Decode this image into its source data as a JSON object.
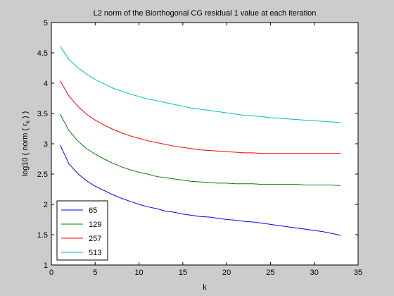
{
  "chart_data": {
    "type": "line",
    "title": "L2 norm of the Biorthogonal CG residual 1 value at each iteration",
    "xlabel": "k",
    "ylabel_prefix": "log10 ( norm ( r",
    "ylabel_subscript": "k",
    "ylabel_suffix": " ) )",
    "xlim": [
      0,
      35
    ],
    "ylim": [
      1,
      5
    ],
    "x_ticks": [
      0,
      5,
      10,
      15,
      20,
      25,
      30,
      35
    ],
    "y_ticks": [
      1,
      1.5,
      2,
      2.5,
      3,
      3.5,
      4,
      4.5,
      5
    ],
    "x_tick_labels": [
      "0",
      "5",
      "10",
      "15",
      "20",
      "25",
      "30",
      "35"
    ],
    "y_tick_labels": [
      "1",
      "1.5",
      "2",
      "2.5",
      "3",
      "3.5",
      "4",
      "4.5",
      "5"
    ],
    "grid": false,
    "legend_position": "bottom-left",
    "x": [
      1,
      2,
      3,
      4,
      5,
      6,
      7,
      8,
      9,
      10,
      11,
      12,
      13,
      14,
      15,
      16,
      17,
      18,
      19,
      20,
      21,
      22,
      23,
      24,
      25,
      26,
      27,
      28,
      29,
      30,
      31,
      32,
      33
    ],
    "series": [
      {
        "name": "65",
        "color": "#0000ff",
        "values": [
          2.98,
          2.67,
          2.51,
          2.39,
          2.3,
          2.23,
          2.16,
          2.1,
          2.05,
          2.0,
          1.96,
          1.93,
          1.89,
          1.87,
          1.84,
          1.82,
          1.8,
          1.79,
          1.77,
          1.75,
          1.74,
          1.72,
          1.71,
          1.69,
          1.67,
          1.65,
          1.63,
          1.61,
          1.59,
          1.57,
          1.55,
          1.52,
          1.49
        ]
      },
      {
        "name": "129",
        "color": "#008000",
        "values": [
          3.49,
          3.22,
          3.05,
          2.92,
          2.83,
          2.75,
          2.68,
          2.62,
          2.57,
          2.53,
          2.5,
          2.46,
          2.44,
          2.42,
          2.4,
          2.38,
          2.37,
          2.36,
          2.35,
          2.35,
          2.34,
          2.34,
          2.34,
          2.33,
          2.33,
          2.33,
          2.33,
          2.33,
          2.32,
          2.32,
          2.32,
          2.32,
          2.31
        ]
      },
      {
        "name": "257",
        "color": "#ff0000",
        "values": [
          4.04,
          3.79,
          3.62,
          3.49,
          3.39,
          3.31,
          3.24,
          3.18,
          3.13,
          3.09,
          3.05,
          3.02,
          2.99,
          2.96,
          2.94,
          2.92,
          2.9,
          2.89,
          2.88,
          2.87,
          2.86,
          2.85,
          2.85,
          2.84,
          2.84,
          2.84,
          2.84,
          2.84,
          2.84,
          2.84,
          2.84,
          2.84,
          2.84
        ]
      },
      {
        "name": "513",
        "color": "#00bfbf",
        "values": [
          4.61,
          4.39,
          4.26,
          4.15,
          4.06,
          3.99,
          3.92,
          3.87,
          3.82,
          3.78,
          3.74,
          3.71,
          3.68,
          3.65,
          3.62,
          3.59,
          3.57,
          3.55,
          3.53,
          3.51,
          3.49,
          3.47,
          3.46,
          3.45,
          3.43,
          3.42,
          3.41,
          3.4,
          3.39,
          3.38,
          3.37,
          3.36,
          3.35
        ]
      }
    ]
  }
}
